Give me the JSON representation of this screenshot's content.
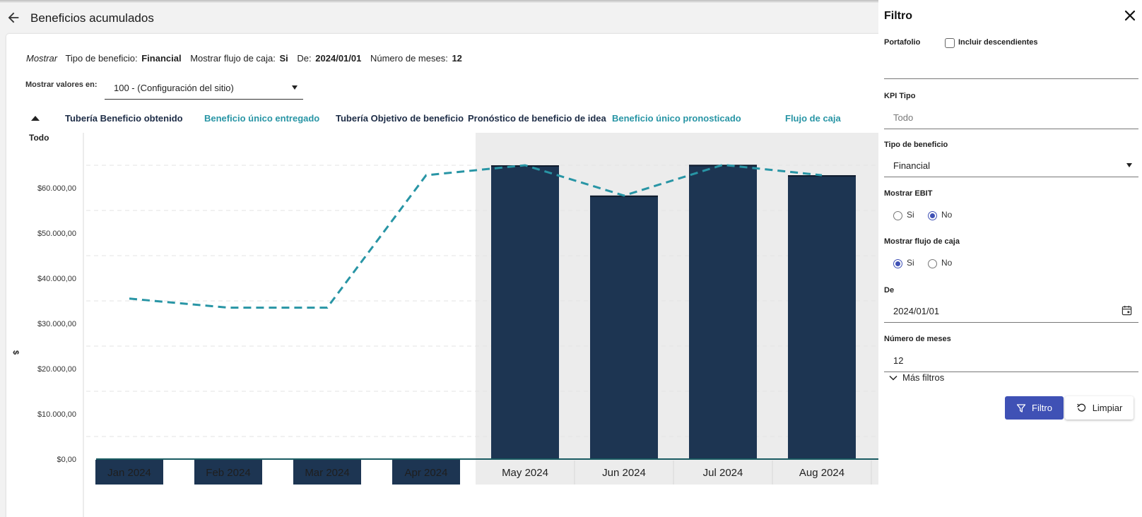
{
  "header": {
    "title": "Beneficios acumulados",
    "back_icon": "arrow-left-icon"
  },
  "summary": {
    "prefix": "Mostrar",
    "tipo_label": "Tipo de beneficio:",
    "tipo_value": "Financial",
    "flujo_label": "Mostrar flujo de caja:",
    "flujo_value": "Si",
    "de_label": "De:",
    "de_value": "2024/01/01",
    "meses_label": "Número de meses:",
    "meses_value": "12"
  },
  "display": {
    "label": "Mostrar valores en:",
    "value": "100 - (Configuración del sitio)"
  },
  "legend": {
    "items": [
      {
        "label": "Tubería Beneficio obtenido",
        "color": "#1d2c46"
      },
      {
        "label": "Beneficio único entregado",
        "color": "#2895a5"
      },
      {
        "label": "Tubería Objetivo de beneficio",
        "color": "#1d2c46"
      },
      {
        "label": "Pronóstico de beneficio de idea",
        "color": "#1d2c46"
      },
      {
        "label": "Beneficio único pronosticado",
        "color": "#2895a5"
      },
      {
        "label": "Flujo de caja",
        "color": "#2895a5"
      }
    ]
  },
  "chart_data": {
    "type": "bar",
    "title": "",
    "scope_label": "Todo",
    "xlabel": "",
    "ylabel": "$",
    "categories": [
      "Jan 2024",
      "Feb 2024",
      "Mar 2024",
      "Apr 2024",
      "May 2024",
      "Jun 2024",
      "Jul 2024",
      "Aug 2024"
    ],
    "yticks": [
      "$0,00",
      "$10.000,00",
      "$20.000,00",
      "$30.000,00",
      "$40.000,00",
      "$50.000,00",
      "$60.000,00"
    ],
    "ytick_values": [
      0,
      10000,
      20000,
      30000,
      40000,
      50000,
      60000
    ],
    "ylim": [
      -10000,
      70000
    ],
    "highlight_from_index": 4,
    "series": [
      {
        "name": "Pronóstico de beneficio de idea",
        "type": "bar",
        "color": "#1d3552",
        "values": [
          0,
          0,
          0,
          0,
          65000,
          58300,
          65100,
          62800
        ]
      },
      {
        "name": "Flujo de caja",
        "type": "line",
        "style": "dashed",
        "color": "#2895a5",
        "values": [
          35500,
          33500,
          33500,
          62800,
          65000,
          58300,
          65100,
          62800
        ]
      }
    ],
    "colors": {
      "bar": "#1d3552",
      "line": "#2895a5",
      "highlight_bg": "#ececec",
      "grid": "#e3e3e3"
    }
  },
  "filter": {
    "title": "Filtro",
    "close_icon": "close-icon",
    "portfolio_label": "Portafolio",
    "include_desc_label": "Incluir descendientes",
    "kpi_label": "KPI Tipo",
    "kpi_placeholder": "Todo",
    "tipo_label": "Tipo de beneficio",
    "tipo_value": "Financial",
    "ebit_label": "Mostrar EBIT",
    "ebit_si": "Si",
    "ebit_no": "No",
    "flujo_label": "Mostrar flujo de caja",
    "flujo_si": "Si",
    "flujo_no": "No",
    "de_label": "De",
    "de_value": "2024/01/01",
    "meses_label": "Número de meses",
    "meses_value": "12",
    "more_label": "Más filtros",
    "filter_button": "Filtro",
    "clear_button": "Limpiar",
    "accent": "#3f51b5"
  }
}
